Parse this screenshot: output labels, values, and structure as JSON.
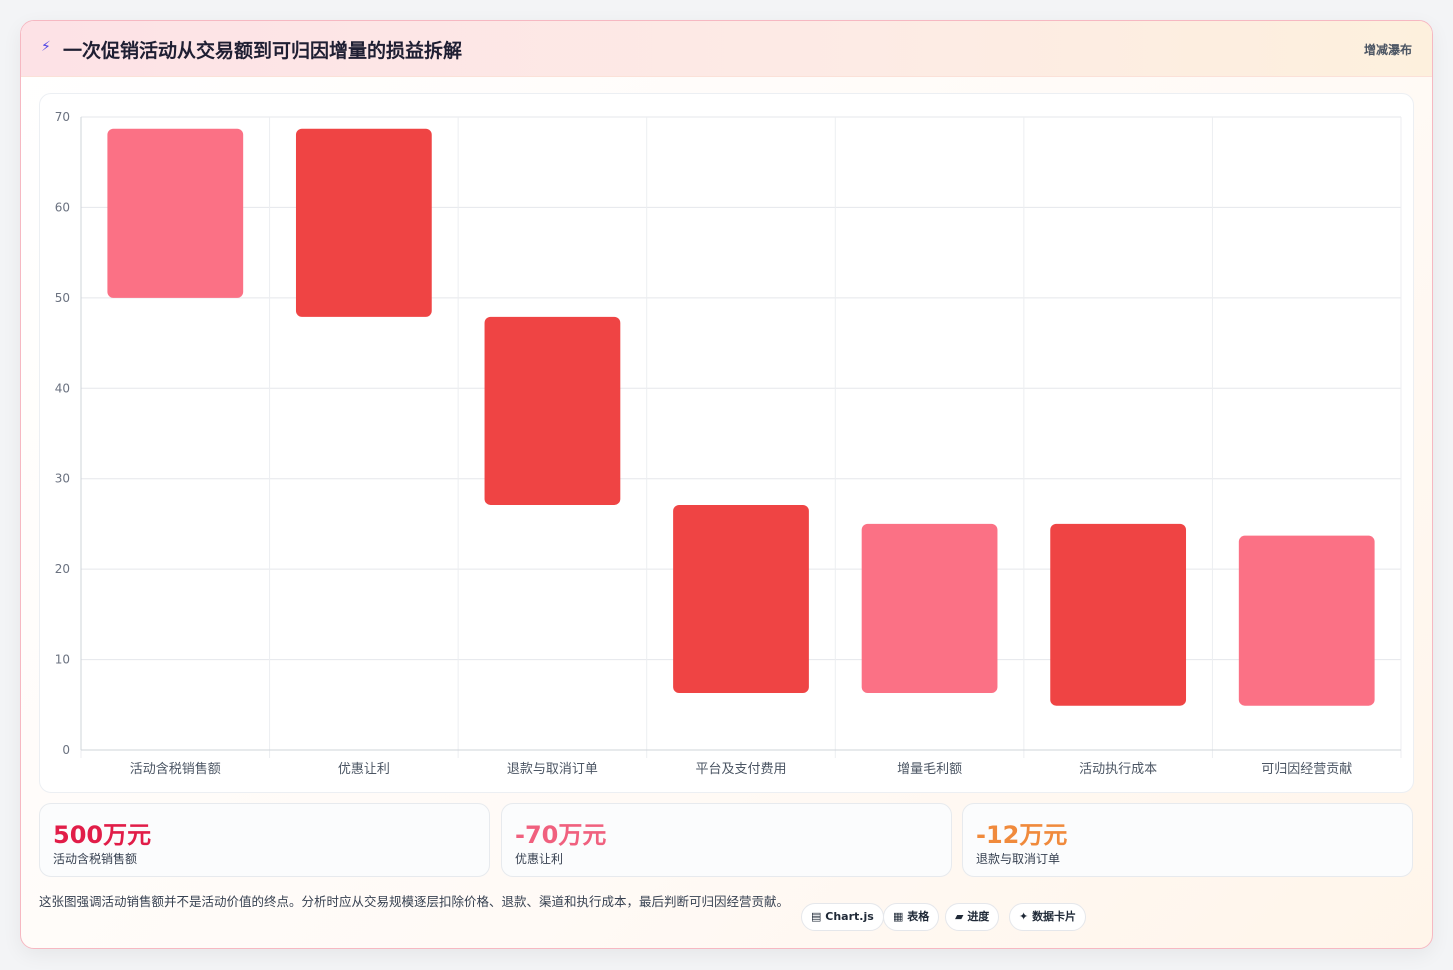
{
  "header": {
    "icon": "bolt-icon",
    "title": "一次促销活动从交易额到可归因增量的损益拆解",
    "tag": "增减瀑布"
  },
  "colors": {
    "positive": "#fb7185",
    "negative": "#ef4444",
    "kpi_red": "#e11d48",
    "kpi_pink": "#f0607e",
    "kpi_orange": "#f08a3c"
  },
  "chart_data": {
    "type": "bar",
    "subtype": "floating-waterfall",
    "categories": [
      "活动含税销售额",
      "优惠让利",
      "退款与取消订单",
      "平台及支付费用",
      "增量毛利额",
      "活动执行成本",
      "可归因经营贡献"
    ],
    "series": [
      {
        "values": [
          [
            50,
            68.7
          ],
          [
            47.9,
            68.7
          ],
          [
            27.1,
            47.9
          ],
          [
            6.3,
            27.1
          ],
          [
            6.3,
            25
          ],
          [
            4.9,
            25
          ],
          [
            4.9,
            23.7
          ]
        ]
      }
    ],
    "bar_colors": [
      "positive",
      "negative",
      "negative",
      "negative",
      "positive",
      "negative",
      "positive"
    ],
    "yticks": [
      0,
      10,
      20,
      30,
      40,
      50,
      60,
      70
    ],
    "ylim": [
      0,
      70
    ],
    "grid": true,
    "legend": "none"
  },
  "kpis": [
    {
      "value": "500万元",
      "label": "活动含税销售额",
      "color": "#e11d48"
    },
    {
      "value": "-70万元",
      "label": "优惠让利",
      "color": "#f0607e"
    },
    {
      "value": "-12万元",
      "label": "退款与取消订单",
      "color": "#f08a3c"
    }
  ],
  "note": "这张图强调活动销售额并不是活动价值的终点。分析时应从交易规模逐层扣除价格、退款、渠道和执行成本，最后判断可归因经营贡献。",
  "chips": [
    {
      "icon": "chart-icon",
      "glyph": "▤",
      "label": "Chart.js"
    },
    {
      "icon": "table-icon",
      "glyph": "▦",
      "label": "表格"
    },
    {
      "icon": "progress-icon",
      "glyph": "▰",
      "label": "进度"
    },
    {
      "icon": "sparkle-icon",
      "glyph": "✦",
      "label": "数据卡片"
    }
  ]
}
